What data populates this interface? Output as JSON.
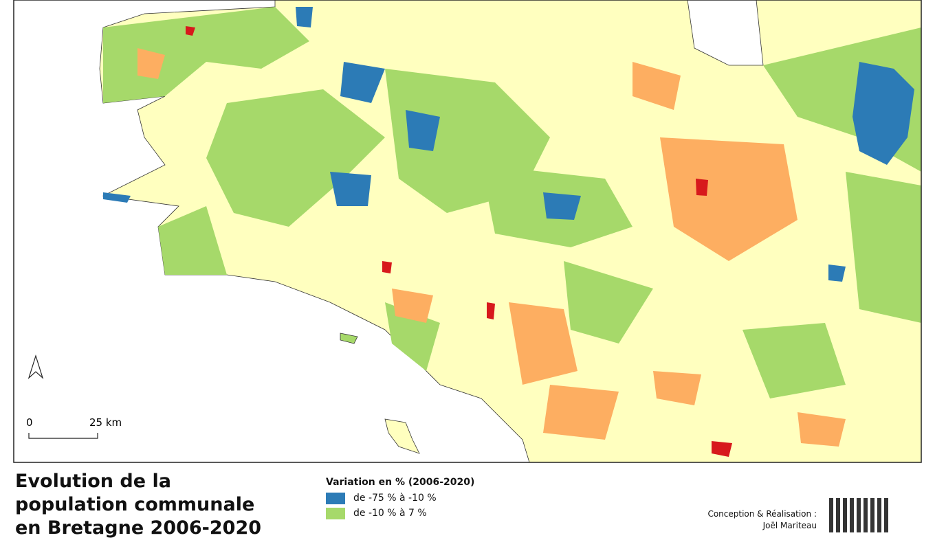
{
  "title": {
    "lines": [
      "Evolution de la",
      "population communale",
      "en Bretagne 2006-2020"
    ]
  },
  "legend": {
    "title": "Variation en % (2006-2020)",
    "items": [
      {
        "label": "de -75 % à -10 %",
        "color": "#2c7bb6"
      },
      {
        "label": "de -10 % à 7 %",
        "color": "#a6d96a"
      }
    ]
  },
  "scale_bar": {
    "start": "0",
    "end": "25 km"
  },
  "credits": {
    "lines": [
      "Conception & Réalisation :",
      "Joël Mariteau"
    ]
  }
}
